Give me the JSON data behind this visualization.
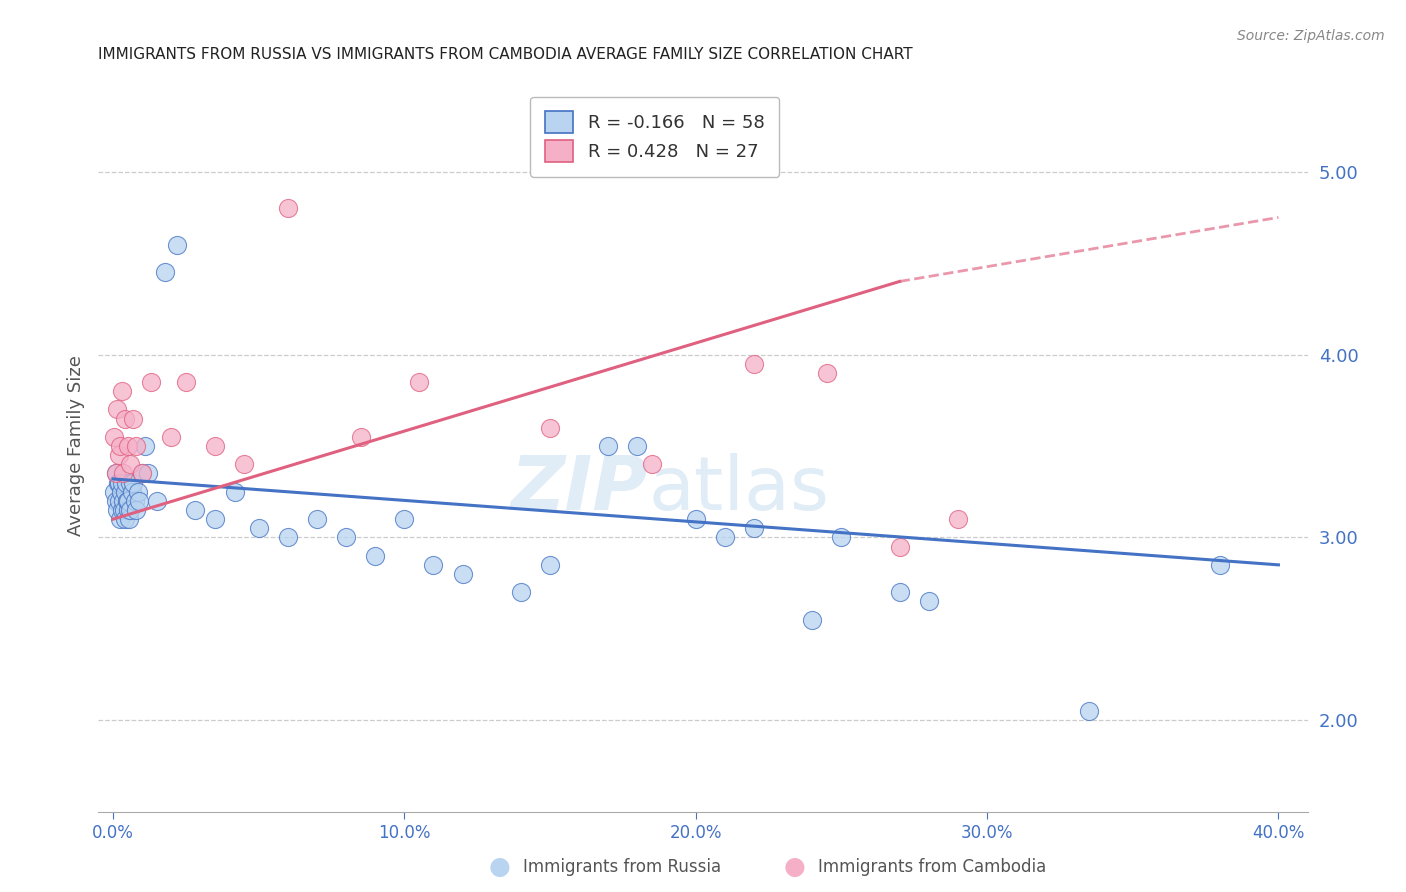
{
  "title": "IMMIGRANTS FROM RUSSIA VS IMMIGRANTS FROM CAMBODIA AVERAGE FAMILY SIZE CORRELATION CHART",
  "source": "Source: ZipAtlas.com",
  "ylabel": "Average Family Size",
  "xlabel_ticks": [
    "0.0%",
    "10.0%",
    "20.0%",
    "30.0%",
    "40.0%"
  ],
  "xlabel_vals": [
    0.0,
    10.0,
    20.0,
    30.0,
    40.0
  ],
  "yaxis_ticks": [
    2.0,
    3.0,
    4.0,
    5.0
  ],
  "yaxis_labels": [
    "2.00",
    "3.00",
    "4.00",
    "5.00"
  ],
  "ylim": [
    1.5,
    5.5
  ],
  "xlim": [
    -0.5,
    41.0
  ],
  "legend_russia": "Immigrants from Russia",
  "legend_cambodia": "Immigrants from Cambodia",
  "R_russia": "-0.166",
  "N_russia": "58",
  "R_cambodia": "0.428",
  "N_cambodia": "27",
  "color_russia_fill": "#b8d4f0",
  "color_cambodia_fill": "#f5b0c8",
  "color_trend_russia": "#4472c4",
  "color_trend_cambodia": "#e06080",
  "color_axis_labels": "#4472c4",
  "color_title": "#222222",
  "russia_x": [
    0.05,
    0.1,
    0.12,
    0.15,
    0.18,
    0.2,
    0.22,
    0.25,
    0.28,
    0.3,
    0.32,
    0.35,
    0.38,
    0.4,
    0.42,
    0.45,
    0.48,
    0.5,
    0.52,
    0.55,
    0.58,
    0.6,
    0.65,
    0.7,
    0.75,
    0.8,
    0.85,
    0.9,
    1.0,
    1.1,
    1.2,
    1.5,
    1.8,
    2.2,
    2.8,
    3.5,
    4.2,
    5.0,
    6.0,
    7.0,
    8.0,
    9.0,
    10.0,
    11.0,
    12.0,
    14.0,
    15.0,
    17.0,
    18.0,
    20.0,
    21.0,
    22.0,
    24.0,
    25.0,
    27.0,
    28.0,
    33.5,
    38.0
  ],
  "russia_y": [
    3.25,
    3.2,
    3.35,
    3.15,
    3.3,
    3.2,
    3.3,
    3.1,
    3.25,
    3.15,
    3.3,
    3.2,
    3.15,
    3.25,
    3.1,
    3.3,
    3.2,
    3.15,
    3.2,
    3.1,
    3.3,
    3.15,
    3.25,
    3.3,
    3.2,
    3.15,
    3.25,
    3.2,
    3.35,
    3.5,
    3.35,
    3.2,
    4.45,
    4.6,
    3.15,
    3.1,
    3.25,
    3.05,
    3.0,
    3.1,
    3.0,
    2.9,
    3.1,
    2.85,
    2.8,
    2.7,
    2.85,
    3.5,
    3.5,
    3.1,
    3.0,
    3.05,
    2.55,
    3.0,
    2.7,
    2.65,
    2.05,
    2.85
  ],
  "cambodia_x": [
    0.05,
    0.1,
    0.15,
    0.2,
    0.25,
    0.3,
    0.35,
    0.4,
    0.5,
    0.6,
    0.7,
    0.8,
    1.0,
    1.3,
    2.0,
    2.5,
    3.5,
    4.5,
    6.0,
    8.5,
    10.5,
    15.0,
    18.5,
    22.0,
    24.5,
    27.0,
    29.0
  ],
  "cambodia_y": [
    3.55,
    3.35,
    3.7,
    3.45,
    3.5,
    3.8,
    3.35,
    3.65,
    3.5,
    3.4,
    3.65,
    3.5,
    3.35,
    3.85,
    3.55,
    3.85,
    3.5,
    3.4,
    4.8,
    3.55,
    3.85,
    3.6,
    3.4,
    3.95,
    3.9,
    2.95,
    3.1
  ],
  "trend_russia_x0": 0.0,
  "trend_russia_y0": 3.32,
  "trend_russia_x1": 40.0,
  "trend_russia_y1": 2.85,
  "trend_cambodia_x0": 0.0,
  "trend_cambodia_y0": 3.1,
  "trend_cambodia_x1": 27.0,
  "trend_cambodia_y1": 4.4,
  "trend_cambodia_dash_x1": 40.0,
  "trend_cambodia_dash_y1": 4.75
}
